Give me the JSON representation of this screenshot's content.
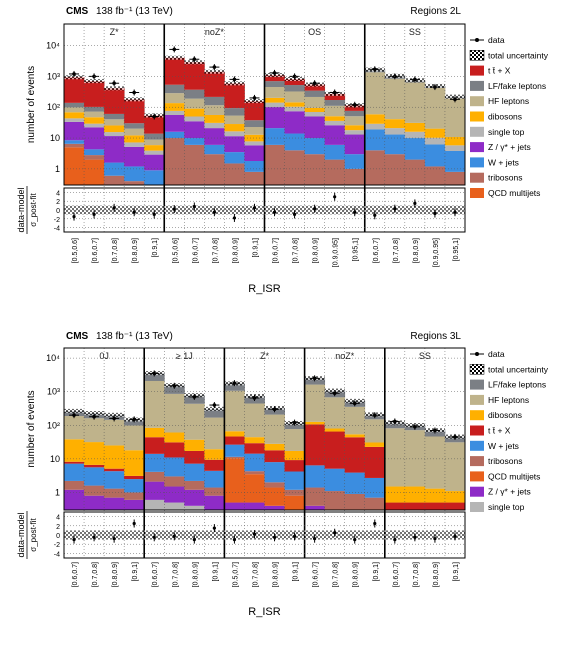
{
  "chart_data": [
    {
      "type": "bar",
      "stacked": true,
      "header_left_bold": "CMS",
      "header_left": "138 fb⁻¹ (13 TeV)",
      "header_right": "Regions 2L",
      "ylabel": "number of events",
      "ratio_ylabel_top": "data-model",
      "ratio_ylabel_bottom": "σ_post-fit",
      "xlabel": "R_ISR",
      "yscale": "log",
      "ylim": [
        0.3,
        50000
      ],
      "ratio_ylim": [
        -5,
        5
      ],
      "ratio_ticks": [
        "4",
        "2",
        "0",
        "-2",
        "-4"
      ],
      "y_ticks": [
        {
          "v": 1,
          "label": "1"
        },
        {
          "v": 10,
          "label": "10"
        },
        {
          "v": 100,
          "label": "10²"
        },
        {
          "v": 1000,
          "label": "10³"
        },
        {
          "v": 10000,
          "label": "10⁴"
        }
      ],
      "regions": [
        "Z*",
        "noZ*",
        "OS",
        "SS"
      ],
      "bins_per_region": [
        5,
        5,
        5,
        5
      ],
      "categories": [
        "[0.5,0.6]",
        "[0.6,0.7]",
        "[0.7,0.8]",
        "[0.8,0.9]",
        "[0.9,1]",
        "[0.5,0.6]",
        "[0.6,0.7]",
        "[0.7,0.8]",
        "[0.8,0.9]",
        "[0.9,1]",
        "[0.6,0.7]",
        "[0.7,0.8]",
        "[0.8,0.9]",
        "[0.9,0.95]",
        "[0.95,1]",
        "[0.6,0.7]",
        "[0.7,0.8]",
        "[0.8,0.9]",
        "[0.9,0.95]",
        "[0.95,1]"
      ],
      "series": [
        {
          "name": "QCD multijets",
          "color": "#e8601c",
          "values": [
            5,
            2,
            0,
            0,
            0,
            0,
            0,
            0,
            0,
            0,
            0,
            0,
            0,
            0,
            0,
            0,
            0,
            0,
            0,
            0
          ]
        },
        {
          "name": "tribosons",
          "color": "#b56b5e",
          "values": [
            1.5,
            0.8,
            0.6,
            0.4,
            0.3,
            10,
            6,
            3,
            1.5,
            0.8,
            6,
            4,
            3,
            2,
            1,
            4,
            3,
            2,
            1.2,
            0.8
          ]
        },
        {
          "name": "W + jets",
          "color": "#3b8de0",
          "values": [
            2,
            1.5,
            1,
            0.8,
            0.6,
            6,
            4,
            3,
            2,
            1,
            15,
            10,
            7,
            4,
            2,
            15,
            10,
            8,
            5,
            3
          ]
        },
        {
          "name": "Z / γ* + jets",
          "color": "#8e2bc7",
          "values": [
            25,
            18,
            10,
            4,
            2,
            40,
            25,
            15,
            8,
            4,
            80,
            60,
            40,
            20,
            10,
            0,
            0,
            0,
            0,
            0
          ]
        },
        {
          "name": "single top",
          "color": "#b5b5b5",
          "values": [
            10,
            7,
            4,
            2,
            1,
            20,
            15,
            10,
            5,
            2,
            40,
            30,
            20,
            10,
            5,
            10,
            8,
            6,
            4,
            2
          ]
        },
        {
          "name": "dibosons",
          "color": "#ffb000",
          "values": [
            25,
            18,
            10,
            5,
            2,
            60,
            40,
            25,
            12,
            5,
            60,
            40,
            25,
            15,
            8,
            30,
            20,
            15,
            10,
            5
          ]
        },
        {
          "name": "HF leptons",
          "color": "#bfb38b",
          "values": [
            30,
            25,
            15,
            8,
            3,
            150,
            100,
            60,
            25,
            10,
            250,
            180,
            120,
            60,
            25,
            1300,
            800,
            600,
            400,
            180
          ]
        },
        {
          "name": "LF/fake leptons",
          "color": "#7b7f85",
          "values": [
            40,
            30,
            20,
            10,
            5,
            250,
            180,
            100,
            40,
            15,
            250,
            200,
            130,
            60,
            25,
            300,
            200,
            120,
            70,
            30
          ]
        },
        {
          "name": "t t̄ + X",
          "color": "#c81e1e",
          "values": [
            800,
            600,
            350,
            150,
            40,
            3500,
            2500,
            1200,
            500,
            120,
            400,
            300,
            200,
            100,
            40,
            0,
            0,
            0,
            0,
            0
          ]
        }
      ],
      "data_points": [
        1200,
        1000,
        600,
        300,
        50,
        7500,
        3600,
        2000,
        800,
        200,
        1300,
        1000,
        600,
        300,
        120,
        1700,
        1000,
        800,
        450,
        180
      ],
      "residuals": [
        -1.5,
        -1,
        0.5,
        -0.5,
        -1,
        0.2,
        0.8,
        -0.5,
        -1.8,
        0.5,
        -0.5,
        -1,
        0.3,
        3,
        -0.5,
        -1.2,
        0.3,
        1.5,
        -0.8,
        -0.5
      ],
      "legend": [
        "data",
        "total uncertainty",
        "t t̄ + X",
        "LF/fake leptons",
        "HF leptons",
        "dibosons",
        "single top",
        "Z / γ* + jets",
        "W + jets",
        "tribosons",
        "QCD multijets"
      ],
      "legend_placement": "right",
      "grid": true
    },
    {
      "type": "bar",
      "stacked": true,
      "header_left_bold": "CMS",
      "header_left": "138 fb⁻¹ (13 TeV)",
      "header_right": "Regions 3L",
      "ylabel": "number of events",
      "ratio_ylabel_top": "data-model",
      "ratio_ylabel_bottom": "σ_post-fit",
      "xlabel": "R_ISR",
      "yscale": "log",
      "ylim": [
        0.3,
        20000
      ],
      "ratio_ylim": [
        -5,
        5
      ],
      "ratio_ticks": [
        "4",
        "2",
        "0",
        "-2",
        "-4"
      ],
      "y_ticks": [
        {
          "v": 1,
          "label": "1"
        },
        {
          "v": 10,
          "label": "10"
        },
        {
          "v": 100,
          "label": "10²"
        },
        {
          "v": 1000,
          "label": "10³"
        },
        {
          "v": 10000,
          "label": "10⁴"
        }
      ],
      "regions": [
        "0J",
        "≥ 1J",
        "Z*",
        "noZ*",
        "SS"
      ],
      "bins_per_region": [
        4,
        4,
        4,
        4,
        4
      ],
      "categories": [
        "[0.6,0.7]",
        "[0.7,0.8]",
        "[0.8,0.9]",
        "[0.9,1]",
        "[0.6,0.7]",
        "[0.7,0.8]",
        "[0.8,0.9]",
        "[0.9,1]",
        "[0.5,0.7]",
        "[0.7,0.8]",
        "[0.8,0.9]",
        "[0.9,1]",
        "[0.6,0.7]",
        "[0.7,0.8]",
        "[0.8,0.9]",
        "[0.9,1]",
        "[0.6,0.7]",
        "[0.7,0.8]",
        "[0.8,0.9]",
        "[0.9,1]"
      ],
      "series": [
        {
          "name": "single top",
          "color": "#b5b5b5",
          "values": [
            0.2,
            0.2,
            0.2,
            0.2,
            0.6,
            0.5,
            0.4,
            0.3,
            0,
            0,
            0,
            0,
            0,
            0,
            0,
            0,
            0,
            0,
            0,
            0
          ]
        },
        {
          "name": "Z / γ* + jets",
          "color": "#8e2bc7",
          "values": [
            1,
            0.6,
            0.5,
            0.4,
            1.5,
            1,
            0.8,
            0.5,
            0.5,
            0.5,
            0.4,
            0.3,
            0.4,
            0.3,
            0.3,
            0.3,
            0,
            0,
            0,
            0
          ]
        },
        {
          "name": "QCD multijets",
          "color": "#e8601c",
          "values": [
            0,
            0,
            0,
            0,
            0,
            0,
            0,
            0,
            10,
            3,
            1,
            0.5,
            0,
            0,
            0,
            0,
            0,
            0,
            0,
            0
          ]
        },
        {
          "name": "tribosons",
          "color": "#b56b5e",
          "values": [
            1,
            0.8,
            0.6,
            0.4,
            2,
            1.5,
            1,
            0.6,
            1,
            0.8,
            0.6,
            0.4,
            1,
            0.8,
            0.6,
            0.4,
            0.3,
            0.3,
            0.3,
            0.3
          ]
        },
        {
          "name": "W + jets",
          "color": "#3b8de0",
          "values": [
            5,
            4,
            3,
            1.5,
            10,
            8,
            5,
            3,
            15,
            10,
            6,
            3,
            5,
            4,
            3,
            2,
            0,
            0,
            0,
            0
          ]
        },
        {
          "name": "t t̄ + X",
          "color": "#c81e1e",
          "values": [
            1,
            1,
            0.8,
            0.6,
            30,
            20,
            10,
            5,
            20,
            15,
            10,
            5,
            100,
            60,
            40,
            20,
            0.2,
            0.2,
            0.2,
            0.2
          ]
        },
        {
          "name": "dibosons",
          "color": "#ffb000",
          "values": [
            30,
            25,
            20,
            15,
            40,
            30,
            20,
            10,
            20,
            15,
            10,
            8,
            20,
            15,
            10,
            8,
            1,
            1,
            0.8,
            0.6
          ]
        },
        {
          "name": "HF leptons",
          "color": "#bfb38b",
          "values": [
            150,
            130,
            120,
            80,
            2000,
            800,
            400,
            150,
            1000,
            400,
            180,
            60,
            1500,
            600,
            300,
            120,
            80,
            70,
            45,
            30
          ]
        },
        {
          "name": "LF/fake leptons",
          "color": "#7b7f85",
          "values": [
            80,
            70,
            60,
            50,
            1500,
            700,
            350,
            140,
            700,
            300,
            120,
            40,
            900,
            400,
            180,
            60,
            40,
            30,
            25,
            15
          ]
        }
      ],
      "data_points": [
        200,
        180,
        160,
        150,
        3500,
        1500,
        700,
        400,
        1800,
        650,
        300,
        120,
        2500,
        900,
        450,
        200,
        130,
        90,
        70,
        45
      ],
      "residuals": [
        -1,
        -0.5,
        -0.8,
        2.5,
        -0.5,
        -0.3,
        -1,
        1.5,
        -1,
        0.2,
        -0.5,
        -0.3,
        -0.8,
        0.5,
        -1,
        2.5,
        -1,
        -0.5,
        -0.8,
        -0.3
      ],
      "legend": [
        "data",
        "total uncertainty",
        "LF/fake leptons",
        "HF leptons",
        "dibosons",
        "t t̄ + X",
        "W + jets",
        "tribosons",
        "QCD multijets",
        "Z / γ* + jets",
        "single top"
      ],
      "legend_placement": "right",
      "grid": true
    }
  ]
}
